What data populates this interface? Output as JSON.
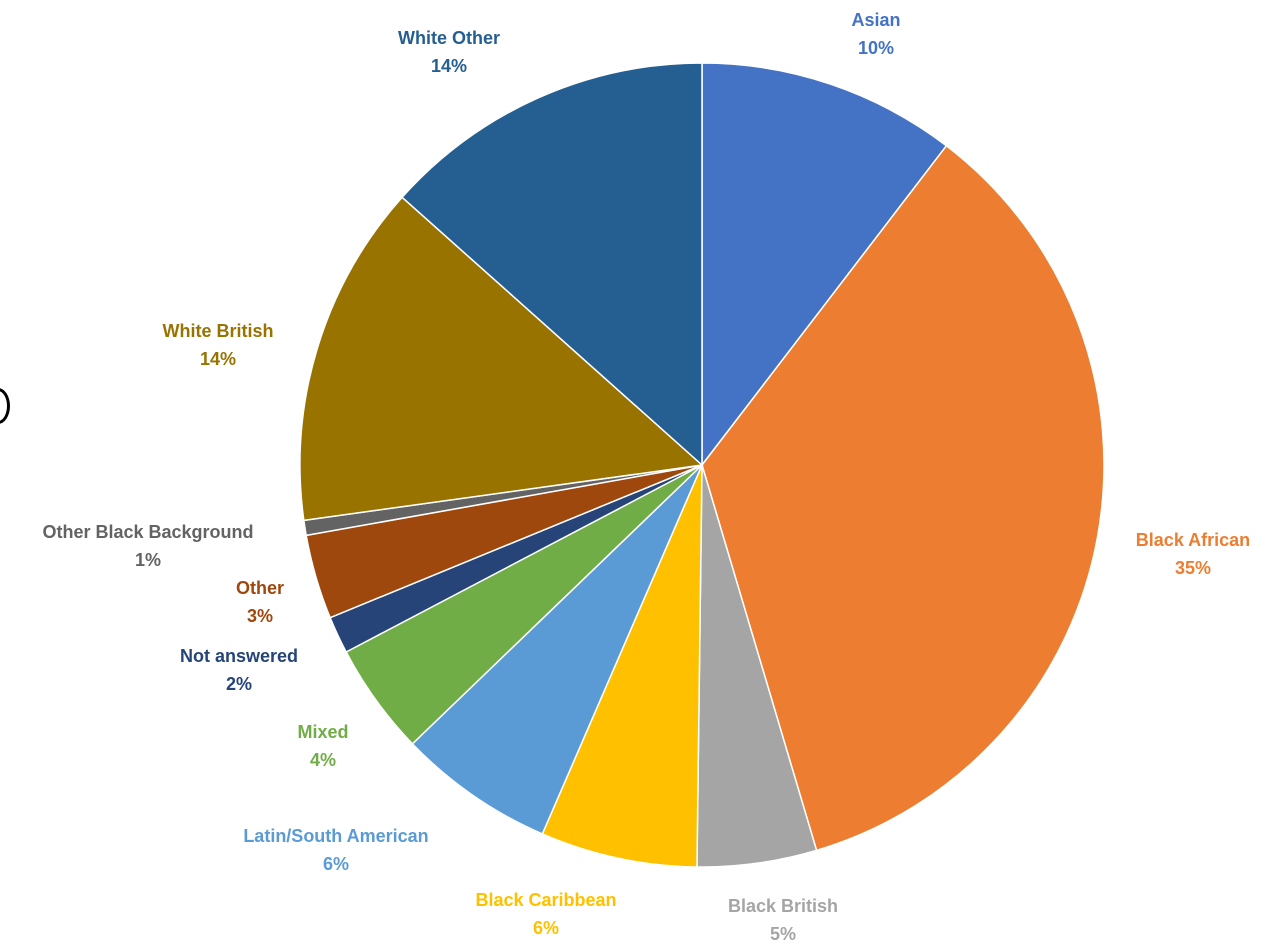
{
  "chart_data": {
    "type": "pie",
    "title": "",
    "start_angle_deg": 0,
    "direction": "clockwise",
    "slices": [
      {
        "label": "Asian",
        "pct_label": "10%",
        "value": 10.4,
        "color": "#4472C4",
        "label_color": "#4472C4"
      },
      {
        "label": "Black African",
        "pct_label": "35%",
        "value": 35.0,
        "color": "#ED7D31",
        "label_color": "#ED7D31"
      },
      {
        "label": "Black British",
        "pct_label": "5%",
        "value": 4.8,
        "color": "#A5A5A5",
        "label_color": "#A5A5A5"
      },
      {
        "label": "Black Caribbean",
        "pct_label": "6%",
        "value": 6.3,
        "color": "#FFC000",
        "label_color": "#FFC000"
      },
      {
        "label": "Latin/South American",
        "pct_label": "6%",
        "value": 6.3,
        "color": "#5B9BD5",
        "label_color": "#5B9BD5"
      },
      {
        "label": "Mixed",
        "pct_label": "4%",
        "value": 4.5,
        "color": "#70AD47",
        "label_color": "#70AD47"
      },
      {
        "label": "Not answered",
        "pct_label": "2%",
        "value": 1.5,
        "color": "#264478",
        "label_color": "#264478"
      },
      {
        "label": "Other",
        "pct_label": "3%",
        "value": 3.4,
        "color": "#9E480E",
        "label_color": "#9E480E"
      },
      {
        "label": "Other Black Background",
        "pct_label": "1%",
        "value": 0.6,
        "color": "#636363",
        "label_color": "#636363"
      },
      {
        "label": "White British",
        "pct_label": "14%",
        "value": 13.8,
        "color": "#997300",
        "label_color": "#997300"
      },
      {
        "label": "White Other",
        "pct_label": "14%",
        "value": 13.4,
        "color": "#255E91",
        "label_color": "#255E91"
      }
    ]
  }
}
